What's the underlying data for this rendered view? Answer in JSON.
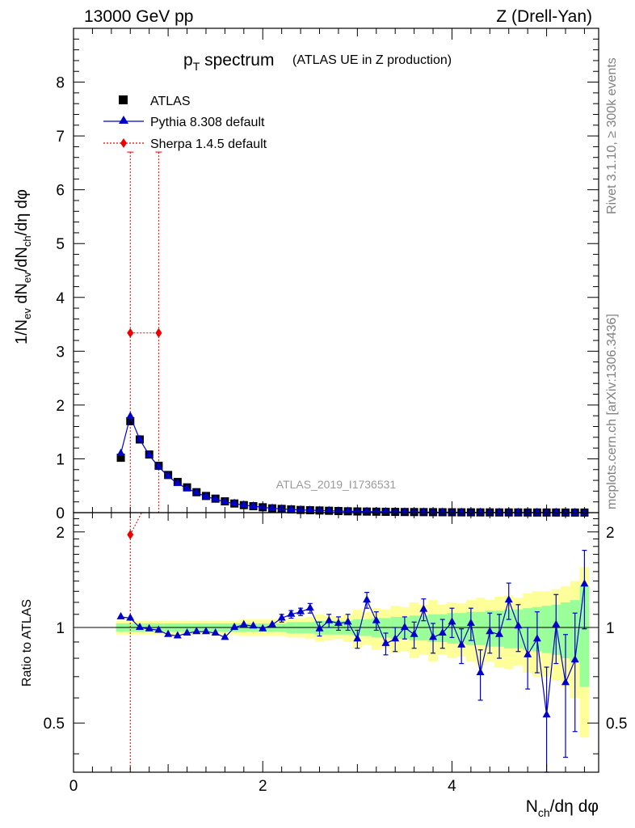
{
  "header": {
    "left": "13000 GeV pp",
    "right": "Z (Drell-Yan)"
  },
  "title": {
    "main": "p",
    "main_sub": "T",
    "main_rest": " spectrum",
    "subtitle": "(ATLAS UE in Z production)"
  },
  "side_labels": {
    "rivet": "Rivet 3.1.10, ≥ 300k events",
    "mcplots": "mcplots.cern.ch [arXiv:1306.3436]"
  },
  "watermark": "ATLAS_2019_I1736531",
  "legend": {
    "atlas": "ATLAS",
    "pythia": "Pythia 8.308 default",
    "sherpa": "Sherpa 1.4.5 default"
  },
  "axes": {
    "ylabel_main": "1/N_ev dN_ev/dN_ch/dη dφ",
    "ylabel_ratio": "Ratio to ATLAS",
    "xlabel": "N_ch/dη dφ",
    "x_ticks": [
      "0",
      "2",
      "4"
    ],
    "main_y_ticks": [
      "0",
      "1",
      "2",
      "3",
      "4",
      "5",
      "6",
      "7",
      "8"
    ],
    "ratio_y_ticks": [
      "0.5",
      "1",
      "2"
    ]
  },
  "colors": {
    "atlas": "#000000",
    "pythia": "#0000cc",
    "sherpa": "#ee0000",
    "band_inner": "#99ff99",
    "band_outer": "#ffff99"
  },
  "chart_data": {
    "type": "scatter",
    "title": "pT spectrum (ATLAS UE in Z production)",
    "xlabel": "N_ch/dη dφ",
    "ylabel": "1/N_ev dN_ev/dN_ch/dη dφ",
    "xlim": [
      0,
      5.55
    ],
    "ylim": [
      0,
      9.0
    ],
    "ratio_ylim": [
      0.35,
      2.3
    ],
    "series": [
      {
        "name": "ATLAS",
        "x": [
          0.5,
          0.6,
          0.7,
          0.8,
          0.9,
          1.0,
          1.1,
          1.2,
          1.3,
          1.4,
          1.5,
          1.6,
          1.7,
          1.8,
          1.9,
          2.0,
          2.1,
          2.2,
          2.3,
          2.4,
          2.5,
          2.6,
          2.7,
          2.8,
          2.9,
          3.0,
          3.1,
          3.2,
          3.3,
          3.4,
          3.5,
          3.6,
          3.7,
          3.8,
          3.9,
          4.0,
          4.1,
          4.2,
          4.3,
          4.4,
          4.5,
          4.6,
          4.7,
          4.8,
          4.9,
          5.0,
          5.1,
          5.2,
          5.3,
          5.4
        ],
        "y": [
          1.02,
          1.7,
          1.36,
          1.08,
          0.87,
          0.7,
          0.57,
          0.47,
          0.38,
          0.31,
          0.26,
          0.21,
          0.17,
          0.14,
          0.12,
          0.1,
          0.08,
          0.07,
          0.06,
          0.05,
          0.045,
          0.04,
          0.035,
          0.03,
          0.025,
          0.022,
          0.02,
          0.018,
          0.016,
          0.014,
          0.012,
          0.011,
          0.01,
          0.009,
          0.008,
          0.007,
          0.006,
          0.006,
          0.005,
          0.005,
          0.004,
          0.004,
          0.004,
          0.003,
          0.003,
          0.003,
          0.003,
          0.002,
          0.002,
          0.002
        ]
      },
      {
        "name": "Pythia 8.308 default",
        "x": [
          0.5,
          0.6,
          0.7,
          0.8,
          0.9,
          1.0,
          1.1,
          1.2,
          1.3,
          1.4,
          1.5,
          1.6,
          1.7,
          1.8,
          1.9,
          2.0,
          2.1,
          2.2,
          2.3,
          2.4,
          2.5,
          2.6,
          2.7,
          2.8,
          2.9,
          3.0,
          3.1,
          3.2,
          3.3,
          3.4,
          3.5,
          3.6,
          3.7,
          3.8,
          3.9,
          4.0,
          4.1,
          4.2,
          4.3,
          4.4,
          4.5,
          4.6,
          4.7,
          4.8,
          4.9,
          5.0,
          5.1,
          5.2,
          5.3,
          5.4
        ],
        "y": [
          1.1,
          1.79,
          1.36,
          1.07,
          0.85,
          0.68,
          0.54,
          0.45,
          0.37,
          0.3,
          0.25,
          0.2,
          0.17,
          0.14,
          0.12,
          0.1,
          0.08,
          0.07,
          0.06,
          0.05,
          0.045,
          0.04,
          0.035,
          0.03,
          0.025,
          0.022,
          0.02,
          0.018,
          0.016,
          0.014,
          0.012,
          0.011,
          0.01,
          0.009,
          0.008,
          0.007,
          0.006,
          0.006,
          0.005,
          0.005,
          0.004,
          0.004,
          0.004,
          0.003,
          0.003,
          0.003,
          0.003,
          0.002,
          0.002,
          0.002
        ],
        "ratio": [
          1.08,
          1.07,
          1.0,
          0.99,
          0.98,
          0.95,
          0.94,
          0.96,
          0.97,
          0.97,
          0.96,
          0.93,
          1.0,
          1.02,
          1.01,
          0.99,
          1.02,
          1.07,
          1.1,
          1.12,
          1.15,
          0.99,
          1.05,
          1.03,
          1.04,
          0.92,
          1.22,
          1.05,
          0.89,
          0.92,
          1.0,
          0.95,
          1.14,
          0.93,
          0.96,
          1.04,
          0.88,
          1.03,
          0.72,
          0.97,
          0.95,
          1.22,
          1.01,
          0.82,
          0.92,
          0.53,
          1.02,
          0.67,
          0.79,
          1.37
        ],
        "ratio_err": [
          0.01,
          0.01,
          0.01,
          0.01,
          0.01,
          0.01,
          0.01,
          0.01,
          0.01,
          0.01,
          0.01,
          0.01,
          0.01,
          0.02,
          0.02,
          0.02,
          0.02,
          0.03,
          0.03,
          0.03,
          0.04,
          0.05,
          0.05,
          0.05,
          0.06,
          0.06,
          0.07,
          0.07,
          0.07,
          0.08,
          0.08,
          0.09,
          0.09,
          0.1,
          0.1,
          0.11,
          0.11,
          0.12,
          0.13,
          0.14,
          0.15,
          0.16,
          0.17,
          0.18,
          0.2,
          0.22,
          0.25,
          0.28,
          0.32,
          0.38
        ]
      },
      {
        "name": "Sherpa 1.4.5 default",
        "x": [
          0.6,
          0.9
        ],
        "y": [
          3.34,
          3.34
        ],
        "x_err_low": [
          0.6
        ],
        "x_err_high": [
          0.9
        ],
        "y_err_high": [
          6.7
        ],
        "ratio_x": [
          0.6
        ],
        "ratio": [
          1.96
        ]
      }
    ],
    "ratio_bands": {
      "x_edges": [
        0.45,
        0.55,
        0.65,
        0.75,
        0.85,
        0.95,
        1.05,
        1.15,
        1.25,
        1.35,
        1.45,
        1.55,
        1.65,
        1.75,
        1.85,
        1.95,
        2.05,
        2.15,
        2.25,
        2.35,
        2.45,
        2.55,
        2.65,
        2.75,
        2.85,
        2.95,
        3.05,
        3.15,
        3.25,
        3.35,
        3.45,
        3.55,
        3.65,
        3.75,
        3.85,
        3.95,
        4.05,
        4.15,
        4.25,
        4.35,
        4.45,
        4.55,
        4.65,
        4.75,
        4.85,
        4.95,
        5.05,
        5.15,
        5.25,
        5.35,
        5.45
      ],
      "inner": [
        0.03,
        0.03,
        0.03,
        0.03,
        0.03,
        0.03,
        0.03,
        0.03,
        0.03,
        0.03,
        0.03,
        0.03,
        0.03,
        0.03,
        0.03,
        0.03,
        0.03,
        0.03,
        0.04,
        0.04,
        0.04,
        0.05,
        0.05,
        0.05,
        0.05,
        0.06,
        0.06,
        0.07,
        0.07,
        0.08,
        0.08,
        0.09,
        0.09,
        0.1,
        0.1,
        0.11,
        0.11,
        0.12,
        0.12,
        0.13,
        0.13,
        0.14,
        0.14,
        0.15,
        0.16,
        0.17,
        0.18,
        0.2,
        0.22,
        0.35
      ],
      "outer": [
        0.05,
        0.05,
        0.05,
        0.05,
        0.05,
        0.05,
        0.05,
        0.05,
        0.05,
        0.05,
        0.05,
        0.05,
        0.05,
        0.06,
        0.06,
        0.06,
        0.06,
        0.06,
        0.07,
        0.07,
        0.08,
        0.1,
        0.09,
        0.08,
        0.1,
        0.14,
        0.12,
        0.15,
        0.14,
        0.17,
        0.16,
        0.2,
        0.18,
        0.22,
        0.18,
        0.2,
        0.19,
        0.22,
        0.24,
        0.22,
        0.25,
        0.26,
        0.24,
        0.28,
        0.3,
        0.3,
        0.32,
        0.35,
        0.4,
        0.55
      ]
    }
  }
}
